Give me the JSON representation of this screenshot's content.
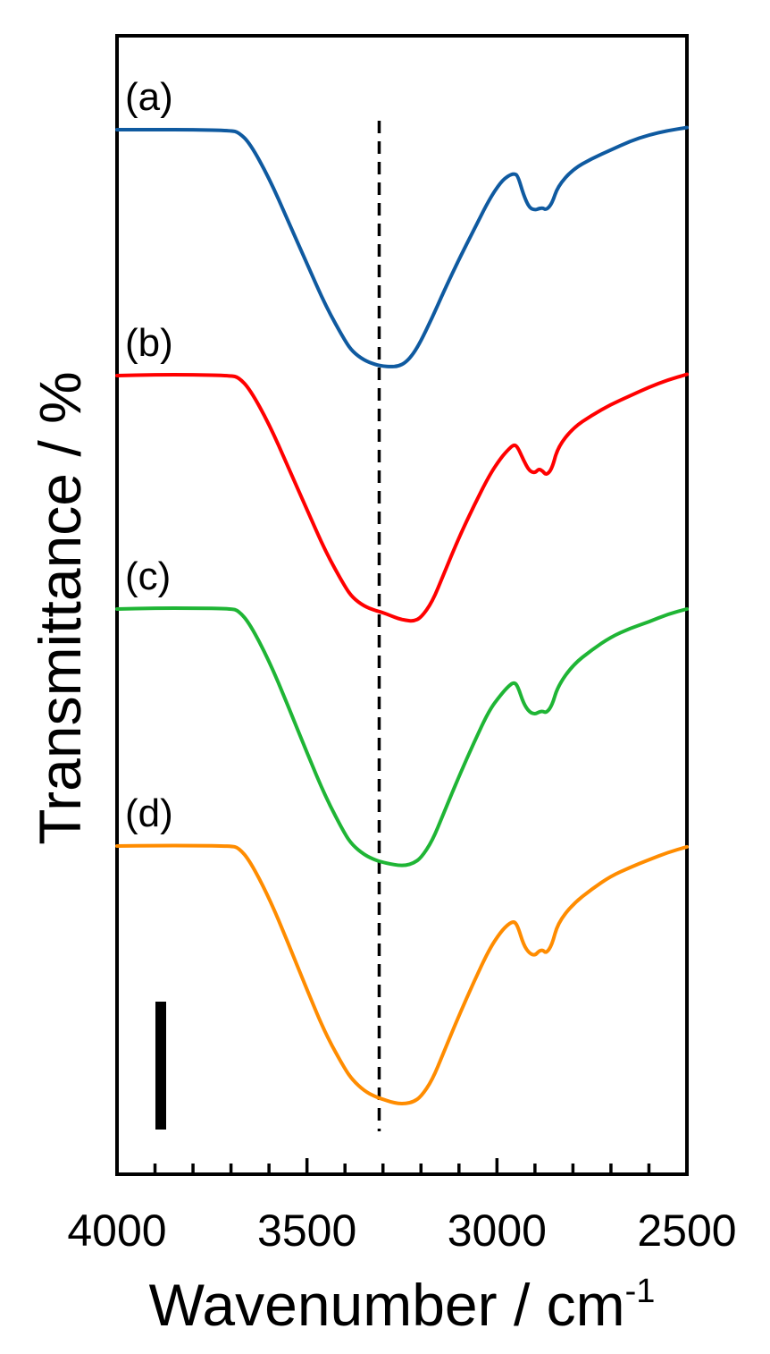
{
  "chart_data": {
    "type": "line",
    "title": "",
    "xlabel": "Wavenumber / cm",
    "xlabel_superscript": "-1",
    "ylabel": "Transmittance / %",
    "xlim": [
      4000,
      2500
    ],
    "x_reversed": true,
    "xticks": [
      4000,
      3500,
      3000,
      2500
    ],
    "xtick_labels": [
      "4000",
      "3500",
      "3000",
      "2500"
    ],
    "x_minor_step": 100,
    "yticks_shown": false,
    "grid": false,
    "legend": "none",
    "reference_line": {
      "x": 3310,
      "style": "dashed",
      "color": "#000000"
    },
    "scale_bar": {
      "present": true
    },
    "x": [
      4000,
      3900,
      3800,
      3700,
      3680,
      3650,
      3600,
      3550,
      3500,
      3450,
      3400,
      3380,
      3350,
      3320,
      3300,
      3280,
      3260,
      3240,
      3220,
      3200,
      3170,
      3140,
      3100,
      3060,
      3020,
      2990,
      2970,
      2955,
      2945,
      2930,
      2915,
      2900,
      2890,
      2880,
      2870,
      2855,
      2840,
      2800,
      2750,
      2700,
      2650,
      2600,
      2550,
      2500
    ],
    "series": [
      {
        "name": "(a)",
        "color": "#0f5aa0",
        "values": [
          95.2,
          95.2,
          95.2,
          95.0,
          94.6,
          92.0,
          84.0,
          74.0,
          64.0,
          54.0,
          46.0,
          43.5,
          41.5,
          40.5,
          40.1,
          40.0,
          40.1,
          41.0,
          43.0,
          46.0,
          51.5,
          57.5,
          65.0,
          72.0,
          79.0,
          83.0,
          84.5,
          85.0,
          84.5,
          80.0,
          77.0,
          76.5,
          76.8,
          77.0,
          76.5,
          78.0,
          82.0,
          86.0,
          88.5,
          90.5,
          92.5,
          94.0,
          95.0,
          95.7
        ]
      },
      {
        "name": "(b)",
        "color": "#ff0000",
        "values": [
          95.2,
          95.4,
          95.4,
          95.2,
          94.8,
          92.0,
          84.0,
          74.0,
          64.0,
          54.0,
          46.0,
          43.5,
          41.5,
          40.5,
          40.0,
          39.3,
          38.6,
          38.2,
          38.0,
          38.8,
          42.5,
          49.0,
          57.5,
          65.0,
          72.0,
          76.0,
          78.0,
          79.2,
          78.5,
          75.5,
          73.0,
          72.5,
          73.5,
          73.0,
          72.0,
          73.5,
          78.5,
          83.0,
          86.0,
          88.5,
          90.5,
          92.5,
          94.2,
          95.5
        ]
      },
      {
        "name": "(c)",
        "color": "#1fb535",
        "values": [
          95.0,
          95.2,
          95.2,
          95.1,
          94.6,
          91.5,
          83.0,
          72.5,
          61.5,
          51.0,
          42.5,
          40.0,
          37.8,
          36.5,
          36.0,
          35.6,
          35.3,
          35.3,
          35.8,
          37.0,
          41.0,
          47.5,
          56.0,
          64.0,
          71.5,
          75.0,
          77.0,
          78.0,
          77.0,
          73.0,
          71.0,
          70.5,
          71.0,
          71.2,
          70.8,
          72.5,
          77.0,
          82.0,
          85.5,
          88.5,
          90.5,
          92.0,
          93.8,
          95.0
        ]
      },
      {
        "name": "(d)",
        "color": "#ff8c00",
        "values": [
          95.0,
          95.1,
          95.1,
          95.0,
          94.6,
          91.5,
          83.0,
          72.5,
          61.5,
          51.0,
          43.0,
          40.5,
          38.0,
          36.6,
          36.0,
          35.4,
          35.0,
          35.0,
          35.4,
          36.6,
          40.5,
          47.0,
          55.5,
          63.5,
          71.0,
          75.0,
          76.8,
          77.5,
          76.3,
          72.0,
          70.0,
          69.5,
          70.5,
          70.8,
          70.0,
          72.0,
          77.0,
          81.5,
          85.0,
          88.0,
          90.0,
          91.8,
          93.5,
          94.8
        ]
      }
    ]
  }
}
